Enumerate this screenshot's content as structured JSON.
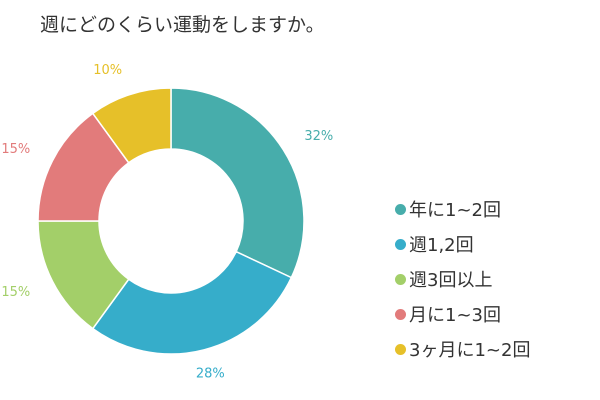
{
  "chart_data": {
    "type": "pie",
    "title": "週にどのくらい運動をしますか。",
    "donut": true,
    "legend_position": "right",
    "series": [
      {
        "name": "年に1~2回",
        "value": 32,
        "label": "32%",
        "color": "#47ADAB"
      },
      {
        "name": "週1,2回",
        "value": 28,
        "label": "28%",
        "color": "#36ADCA"
      },
      {
        "name": "週3回以上",
        "value": 15,
        "label": "15%",
        "color": "#A3CF69"
      },
      {
        "name": "月に1~3回",
        "value": 15,
        "label": "15%",
        "color": "#E27B7B"
      },
      {
        "name": "3ヶ月に1~2回",
        "value": 10,
        "label": "10%",
        "color": "#E6C029"
      }
    ]
  }
}
